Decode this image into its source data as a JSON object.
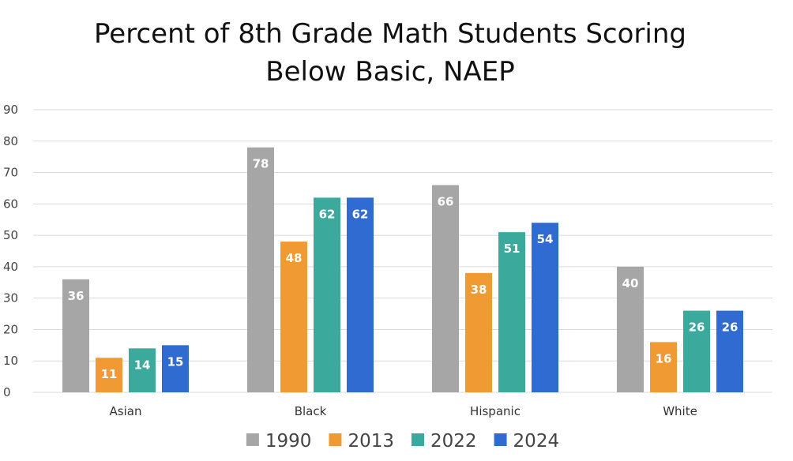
{
  "chart_data": {
    "type": "bar",
    "title_lines": [
      "Percent of 8th Grade Math Students Scoring",
      "Below Basic, NAEP"
    ],
    "xlabel": "",
    "ylabel": "",
    "ylim": [
      0,
      90
    ],
    "yticks": [
      0,
      10,
      20,
      30,
      40,
      50,
      60,
      70,
      80,
      90
    ],
    "grid": true,
    "legend_position": "bottom",
    "categories": [
      "Asian",
      "Black",
      "Hispanic",
      "White"
    ],
    "series": [
      {
        "name": "1990",
        "color": "#a6a6a6",
        "values": [
          36,
          78,
          66,
          40
        ]
      },
      {
        "name": "2013",
        "color": "#ef9a33",
        "values": [
          11,
          48,
          38,
          16
        ]
      },
      {
        "name": "2022",
        "color": "#3ba99c",
        "values": [
          14,
          62,
          51,
          26
        ]
      },
      {
        "name": "2024",
        "color": "#2f6bd0",
        "values": [
          15,
          62,
          54,
          26
        ]
      }
    ]
  }
}
